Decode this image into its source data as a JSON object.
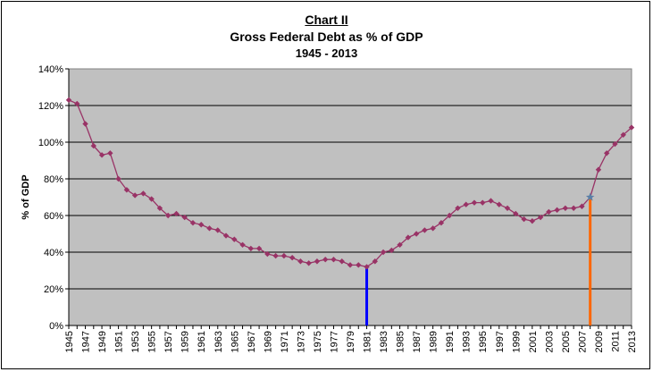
{
  "chart_data": {
    "type": "line",
    "title": "Chart II",
    "subtitle": "Gross Federal Debt as % of GDP",
    "period": "1945 - 2013",
    "xlabel": "",
    "ylabel": "% of GDP",
    "ylim": [
      0,
      140
    ],
    "yticks": [
      "0%",
      "20%",
      "40%",
      "60%",
      "80%",
      "100%",
      "120%",
      "140%"
    ],
    "xticks": [
      "1945",
      "1947",
      "1949",
      "1951",
      "1953",
      "1955",
      "1957",
      "1959",
      "1961",
      "1963",
      "1965",
      "1967",
      "1969",
      "1971",
      "1973",
      "1975",
      "1977",
      "1979",
      "1981",
      "1983",
      "1985",
      "1987",
      "1989",
      "1991",
      "1993",
      "1995",
      "1997",
      "1999",
      "2001",
      "2003",
      "2005",
      "2007",
      "2009",
      "2011",
      "2013"
    ],
    "grid": true,
    "colors": {
      "series": "#993366",
      "plot_bg": "#c0c0c0",
      "marker_1981": "#0000ff",
      "marker_2008": "#ff6600",
      "star_2008": "#5b7fa6"
    },
    "series": [
      {
        "x": [
          1945,
          1946,
          1947,
          1948,
          1949,
          1950,
          1951,
          1952,
          1953,
          1954,
          1955,
          1956,
          1957,
          1958,
          1959,
          1960,
          1961,
          1962,
          1963,
          1964,
          1965,
          1966,
          1967,
          1968,
          1969,
          1970,
          1971,
          1972,
          1973,
          1974,
          1975,
          1976,
          1977,
          1978,
          1979,
          1980,
          1981,
          1982,
          1983,
          1984,
          1985,
          1986,
          1987,
          1988,
          1989,
          1990,
          1991,
          1992,
          1993,
          1994,
          1995,
          1996,
          1997,
          1998,
          1999,
          2000,
          2001,
          2002,
          2003,
          2004,
          2005,
          2006,
          2007,
          2008,
          2009,
          2010,
          2011,
          2012,
          2013
        ],
        "values": [
          123,
          121,
          110,
          98,
          93,
          94,
          80,
          74,
          71,
          72,
          69,
          64,
          60,
          61,
          59,
          56,
          55,
          53,
          52,
          49,
          47,
          44,
          42,
          42,
          39,
          38,
          38,
          37,
          35,
          34,
          35,
          36,
          36,
          35,
          33,
          33,
          32,
          35,
          40,
          41,
          44,
          48,
          50,
          52,
          53,
          56,
          60,
          64,
          66,
          67,
          67,
          68,
          66,
          64,
          61,
          58,
          57,
          59,
          62,
          63,
          64,
          64,
          65,
          70,
          85,
          94,
          99,
          104,
          108
        ]
      }
    ],
    "highlights": [
      {
        "year": 1981,
        "value": 32,
        "color": "#0000ff"
      },
      {
        "year": 2008,
        "value": 70,
        "color": "#ff6600"
      }
    ]
  }
}
